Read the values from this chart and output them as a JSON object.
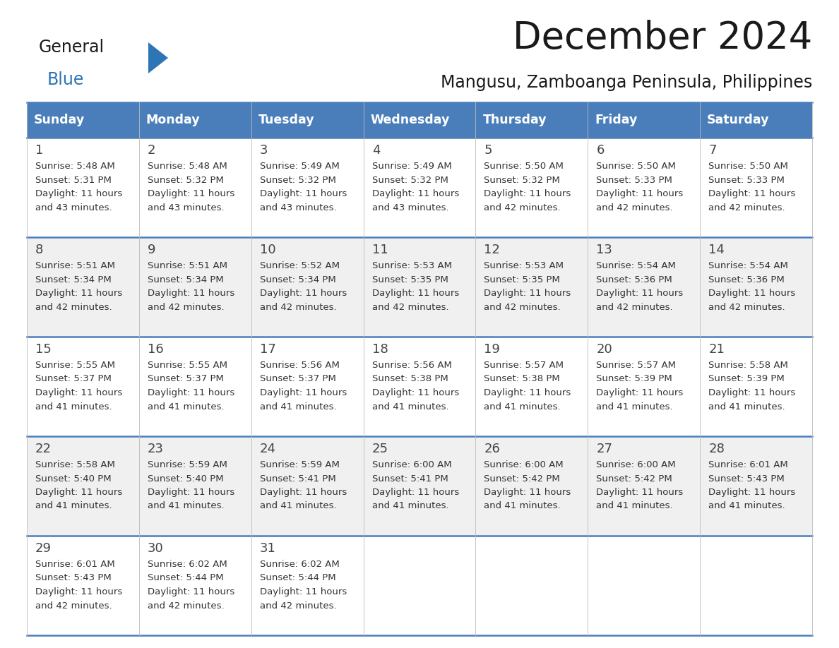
{
  "title": "December 2024",
  "subtitle": "Mangusu, Zamboanga Peninsula, Philippines",
  "header_color": "#4A7EBB",
  "header_text_color": "#FFFFFF",
  "days_of_week": [
    "Sunday",
    "Monday",
    "Tuesday",
    "Wednesday",
    "Thursday",
    "Friday",
    "Saturday"
  ],
  "background_color": "#FFFFFF",
  "cell_bg_even": "#FFFFFF",
  "cell_bg_odd": "#F0F0F0",
  "border_color": "#4A7EBB",
  "text_color": "#333333",
  "day_num_color": "#444444",
  "calendar_data": [
    [
      {
        "day": 1,
        "sunrise": "5:48 AM",
        "sunset": "5:31 PM",
        "daylight": "11 hours and 43 minutes."
      },
      {
        "day": 2,
        "sunrise": "5:48 AM",
        "sunset": "5:32 PM",
        "daylight": "11 hours and 43 minutes."
      },
      {
        "day": 3,
        "sunrise": "5:49 AM",
        "sunset": "5:32 PM",
        "daylight": "11 hours and 43 minutes."
      },
      {
        "day": 4,
        "sunrise": "5:49 AM",
        "sunset": "5:32 PM",
        "daylight": "11 hours and 43 minutes."
      },
      {
        "day": 5,
        "sunrise": "5:50 AM",
        "sunset": "5:32 PM",
        "daylight": "11 hours and 42 minutes."
      },
      {
        "day": 6,
        "sunrise": "5:50 AM",
        "sunset": "5:33 PM",
        "daylight": "11 hours and 42 minutes."
      },
      {
        "day": 7,
        "sunrise": "5:50 AM",
        "sunset": "5:33 PM",
        "daylight": "11 hours and 42 minutes."
      }
    ],
    [
      {
        "day": 8,
        "sunrise": "5:51 AM",
        "sunset": "5:34 PM",
        "daylight": "11 hours and 42 minutes."
      },
      {
        "day": 9,
        "sunrise": "5:51 AM",
        "sunset": "5:34 PM",
        "daylight": "11 hours and 42 minutes."
      },
      {
        "day": 10,
        "sunrise": "5:52 AM",
        "sunset": "5:34 PM",
        "daylight": "11 hours and 42 minutes."
      },
      {
        "day": 11,
        "sunrise": "5:53 AM",
        "sunset": "5:35 PM",
        "daylight": "11 hours and 42 minutes."
      },
      {
        "day": 12,
        "sunrise": "5:53 AM",
        "sunset": "5:35 PM",
        "daylight": "11 hours and 42 minutes."
      },
      {
        "day": 13,
        "sunrise": "5:54 AM",
        "sunset": "5:36 PM",
        "daylight": "11 hours and 42 minutes."
      },
      {
        "day": 14,
        "sunrise": "5:54 AM",
        "sunset": "5:36 PM",
        "daylight": "11 hours and 42 minutes."
      }
    ],
    [
      {
        "day": 15,
        "sunrise": "5:55 AM",
        "sunset": "5:37 PM",
        "daylight": "11 hours and 41 minutes."
      },
      {
        "day": 16,
        "sunrise": "5:55 AM",
        "sunset": "5:37 PM",
        "daylight": "11 hours and 41 minutes."
      },
      {
        "day": 17,
        "sunrise": "5:56 AM",
        "sunset": "5:37 PM",
        "daylight": "11 hours and 41 minutes."
      },
      {
        "day": 18,
        "sunrise": "5:56 AM",
        "sunset": "5:38 PM",
        "daylight": "11 hours and 41 minutes."
      },
      {
        "day": 19,
        "sunrise": "5:57 AM",
        "sunset": "5:38 PM",
        "daylight": "11 hours and 41 minutes."
      },
      {
        "day": 20,
        "sunrise": "5:57 AM",
        "sunset": "5:39 PM",
        "daylight": "11 hours and 41 minutes."
      },
      {
        "day": 21,
        "sunrise": "5:58 AM",
        "sunset": "5:39 PM",
        "daylight": "11 hours and 41 minutes."
      }
    ],
    [
      {
        "day": 22,
        "sunrise": "5:58 AM",
        "sunset": "5:40 PM",
        "daylight": "11 hours and 41 minutes."
      },
      {
        "day": 23,
        "sunrise": "5:59 AM",
        "sunset": "5:40 PM",
        "daylight": "11 hours and 41 minutes."
      },
      {
        "day": 24,
        "sunrise": "5:59 AM",
        "sunset": "5:41 PM",
        "daylight": "11 hours and 41 minutes."
      },
      {
        "day": 25,
        "sunrise": "6:00 AM",
        "sunset": "5:41 PM",
        "daylight": "11 hours and 41 minutes."
      },
      {
        "day": 26,
        "sunrise": "6:00 AM",
        "sunset": "5:42 PM",
        "daylight": "11 hours and 41 minutes."
      },
      {
        "day": 27,
        "sunrise": "6:00 AM",
        "sunset": "5:42 PM",
        "daylight": "11 hours and 41 minutes."
      },
      {
        "day": 28,
        "sunrise": "6:01 AM",
        "sunset": "5:43 PM",
        "daylight": "11 hours and 41 minutes."
      }
    ],
    [
      {
        "day": 29,
        "sunrise": "6:01 AM",
        "sunset": "5:43 PM",
        "daylight": "11 hours and 42 minutes."
      },
      {
        "day": 30,
        "sunrise": "6:02 AM",
        "sunset": "5:44 PM",
        "daylight": "11 hours and 42 minutes."
      },
      {
        "day": 31,
        "sunrise": "6:02 AM",
        "sunset": "5:44 PM",
        "daylight": "11 hours and 42 minutes."
      },
      null,
      null,
      null,
      null
    ]
  ]
}
